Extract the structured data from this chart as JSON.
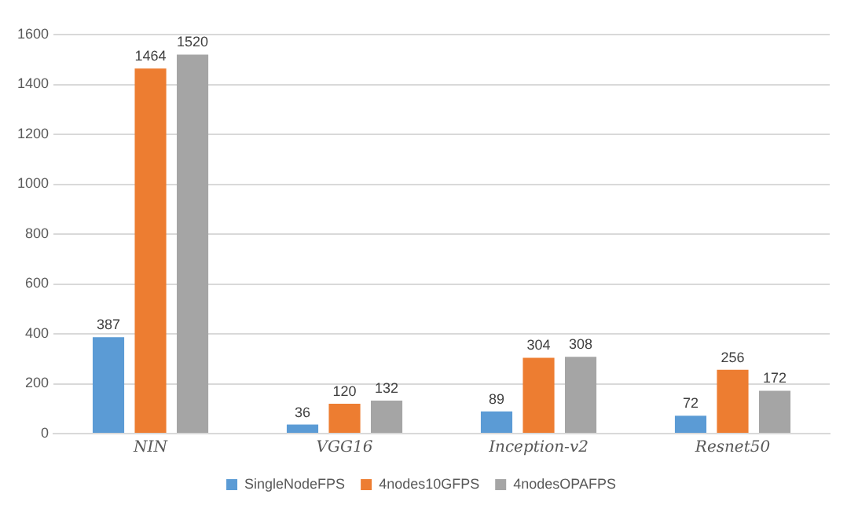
{
  "chart_data": {
    "type": "bar",
    "categories": [
      "NIN",
      "VGG16",
      "Inception-v2",
      "Resnet50"
    ],
    "series": [
      {
        "name": "SingleNodeFPS",
        "color": "#5b9bd5",
        "values": [
          387,
          36,
          89,
          72
        ]
      },
      {
        "name": "4nodes10GFPS",
        "color": "#ed7d31",
        "values": [
          1464,
          120,
          304,
          256
        ]
      },
      {
        "name": "4nodesOPAFPS",
        "color": "#a5a5a5",
        "values": [
          1520,
          132,
          308,
          172
        ]
      }
    ],
    "ylim": [
      0,
      1600
    ],
    "yticks": [
      0,
      200,
      400,
      600,
      800,
      1000,
      1200,
      1400,
      1600
    ],
    "grid": "y",
    "legend": "bottom",
    "data_labels": true
  }
}
